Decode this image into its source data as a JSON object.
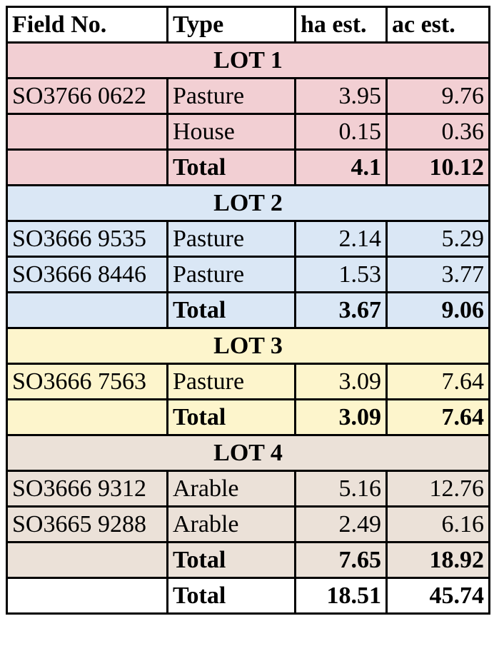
{
  "header": {
    "field": "Field No.",
    "type": "Type",
    "ha": "ha est.",
    "ac": "ac est."
  },
  "lots": [
    {
      "title": "LOT 1",
      "color": "#f2cfd3",
      "rows": [
        {
          "field": "SO3766 0622",
          "type": "Pasture",
          "ha": 3.95,
          "ac": 9.76
        },
        {
          "field": null,
          "type": "House",
          "ha": 0.15,
          "ac": 0.36
        }
      ],
      "total": {
        "label": "Total",
        "ha": 4.1,
        "ac": 10.12
      }
    },
    {
      "title": "LOT 2",
      "color": "#dae7f5",
      "rows": [
        {
          "field": "SO3666 9535",
          "type": "Pasture",
          "ha": 2.14,
          "ac": 5.29
        },
        {
          "field": "SO3666 8446",
          "type": "Pasture",
          "ha": 1.53,
          "ac": 3.77
        }
      ],
      "total": {
        "label": "Total",
        "ha": 3.67,
        "ac": 9.06
      }
    },
    {
      "title": "LOT 3",
      "color": "#fdf5cc",
      "rows": [
        {
          "field": "SO3666 7563",
          "type": "Pasture",
          "ha": 3.09,
          "ac": 7.64
        }
      ],
      "total": {
        "label": "Total",
        "ha": 3.09,
        "ac": 7.64
      }
    },
    {
      "title": "LOT 4",
      "color": "#ebe1d8",
      "rows": [
        {
          "field": "SO3666 9312",
          "type": "Arable",
          "ha": 5.16,
          "ac": 12.76
        },
        {
          "field": "SO3665 9288",
          "type": "Arable",
          "ha": 2.49,
          "ac": 6.16
        }
      ],
      "total": {
        "label": "Total",
        "ha": 7.65,
        "ac": 18.92
      }
    }
  ],
  "grand_total": {
    "label": "Total",
    "ha": 18.51,
    "ac": 45.74
  }
}
